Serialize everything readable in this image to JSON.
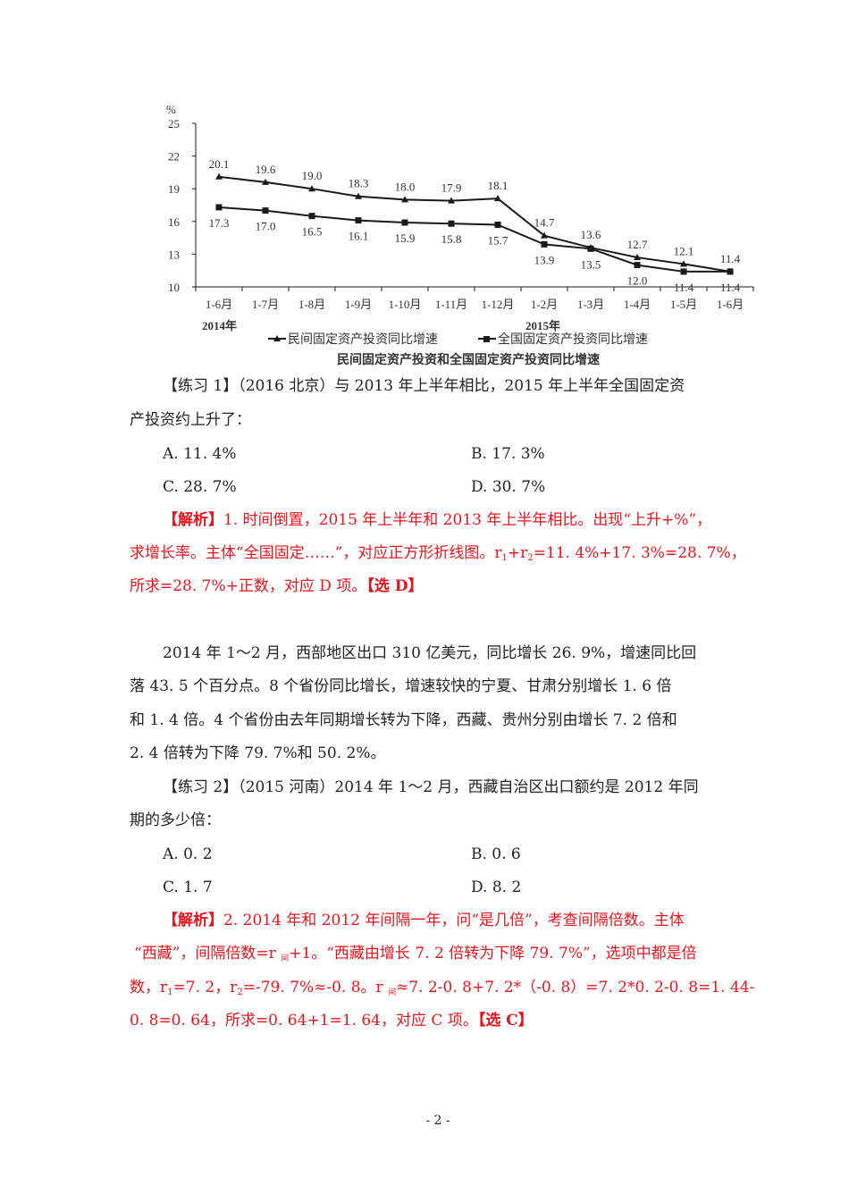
{
  "chart_data": {
    "type": "line",
    "title": "民间固定资产投资和全国固定资产投资同比增速",
    "ylabel": "%",
    "ylim": [
      10,
      25
    ],
    "yticks": [
      10,
      13,
      16,
      19,
      22,
      25
    ],
    "categories": [
      "1-6月",
      "1-7月",
      "1-8月",
      "1-9月",
      "1-10月",
      "1-11月",
      "1-12月",
      "1-2月",
      "1-3月",
      "1-4月",
      "1-5月",
      "1-6月"
    ],
    "year_labels": [
      "2014年",
      "2015年"
    ],
    "grid": false,
    "legend": "bottom",
    "series": [
      {
        "name": "民间固定资产投资同比增速",
        "marker": "triangle",
        "values": [
          20.1,
          19.6,
          19.0,
          18.3,
          18.0,
          17.9,
          18.1,
          14.7,
          13.6,
          12.7,
          12.1,
          11.4
        ]
      },
      {
        "name": "全国固定资产投资同比增速",
        "marker": "square",
        "values": [
          17.3,
          17.0,
          16.5,
          16.1,
          15.9,
          15.8,
          15.7,
          13.9,
          13.5,
          12.0,
          11.4,
          11.4
        ]
      }
    ],
    "colors": {
      "line": "#1a1a1a",
      "text": "#333333"
    }
  },
  "q1": {
    "stem1": "【练习 1】（2016 北京）与 2013 年上半年相比，2015 年上半年全国固定资",
    "stem2": "产投资约上升了：",
    "a": "A. 11. 4%",
    "b": "B. 17. 3%",
    "c": "C. 28. 7%",
    "d": "D. 30. 7%",
    "ans_tag": "【解析】",
    "ans1": "1. 时间倒置，2015 年上半年和 2013 年上半年相比。出现“上升+%”，",
    "ans2a": "求增长率。主体“全国固定……”，对应正方形折线图。r",
    "ans2s1": "1",
    "ans2b": "+r",
    "ans2s2": "2",
    "ans2c": "=11. 4%+17. 3%=28. 7%，",
    "ans3a": "所求=28. 7%+正数，对应 D 项。",
    "ans3tag": "【选 D】"
  },
  "material": [
    "2014 年 1～2 月，西部地区出口 310 亿美元，同比增长 26. 9%，增速同比回",
    "落 43. 5 个百分点。8 个省份同比增长，增速较快的宁夏、甘肃分别增长 1. 6 倍",
    "和 1. 4 倍。4 个省份由去年同期增长转为下降，西藏、贵州分别由增长 7. 2 倍和",
    "2. 4 倍转为下降 79. 7%和 50. 2%。"
  ],
  "q2": {
    "stem1": "【练习 2】（2015 河南）2014 年 1～2 月，西藏自治区出口额约是 2012 年同",
    "stem2": "期的多少倍：",
    "a": "A. 0. 2",
    "b": "B. 0. 6",
    "c": "C. 1. 7",
    "d": "D. 8. 2",
    "ans_tag": "【解析】",
    "ans1": "2. 2014 年和 2012 年间隔一年，问“是几倍”，考查间隔倍数。主体",
    "ans2a": "“西藏”，间隔倍数=r ",
    "ans2s": "间",
    "ans2b": "+1。“西藏由增长 7. 2 倍转为下降 79. 7%”，选项中都是倍",
    "ans3a": "数，r",
    "ans3s1": "1",
    "ans3b": "=7. 2，r",
    "ans3s2": "2",
    "ans3c": "=-79. 7%≈-0. 8。r ",
    "ans3s3": "间",
    "ans3d": "≈7. 2-0. 8+7. 2*（-0. 8）=7. 2*0. 2-0. 8=1. 44-",
    "ans4a": "0. 8=0. 64，所求=0. 64+1=1. 64，对应 C 项。",
    "ans4tag": "【选 C】"
  },
  "page_number": "- 2 -"
}
